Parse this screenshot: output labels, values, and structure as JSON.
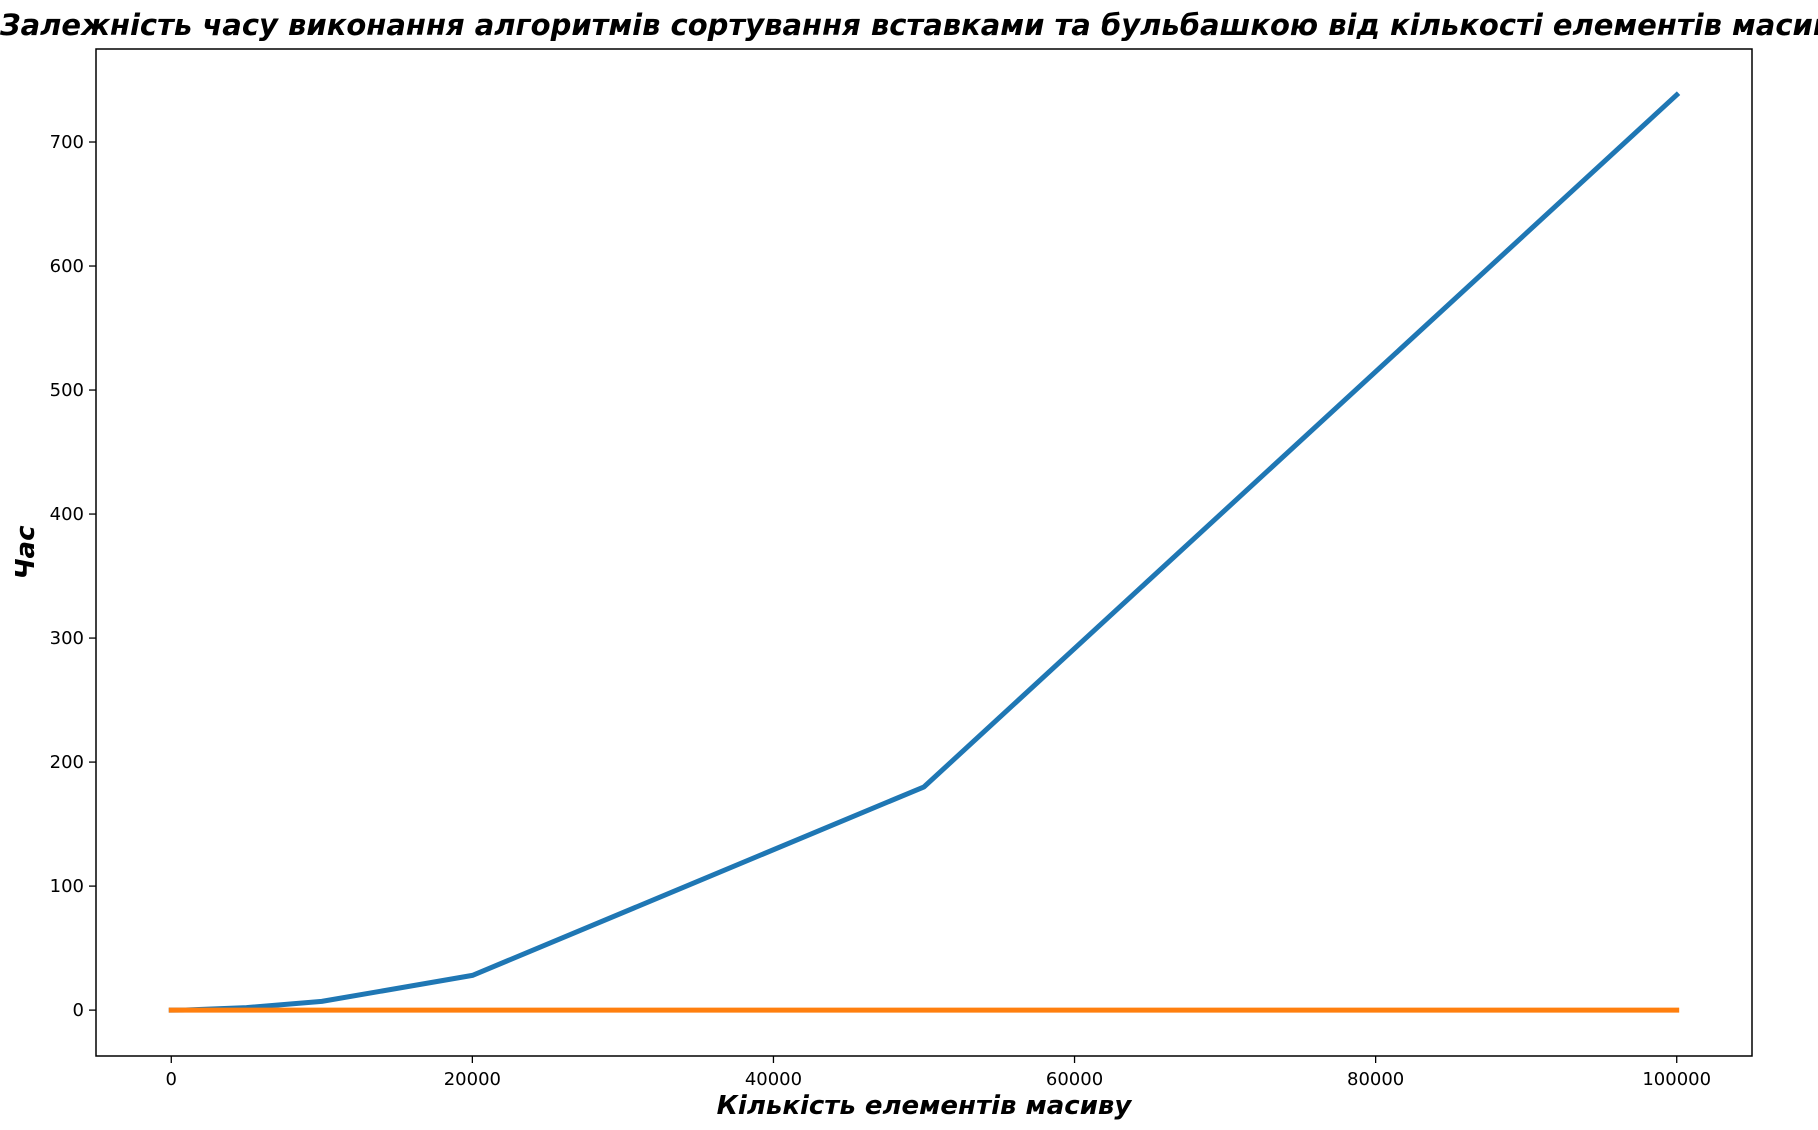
{
  "chart_data": {
    "type": "line",
    "title": "Залежність часу виконання алгоритмів сортування вставками та бульбашкою від кількості елементів масиву",
    "xlabel": "Кількість елементів масиву",
    "ylabel": "Час",
    "xlim": [
      -5000,
      105000
    ],
    "ylim": [
      -37,
      775
    ],
    "xticks": [
      0,
      20000,
      40000,
      60000,
      80000,
      100000
    ],
    "yticks": [
      0,
      100,
      200,
      300,
      400,
      500,
      600,
      700
    ],
    "grid": false,
    "legend": "none",
    "series": [
      {
        "color": "#1f77b4",
        "x": [
          0,
          1000,
          5000,
          10000,
          20000,
          50000,
          100000
        ],
        "y": [
          0,
          0.1,
          2,
          7,
          28,
          180,
          738
        ]
      },
      {
        "color": "#ff7f0e",
        "x": [
          0,
          1000,
          5000,
          10000,
          20000,
          50000,
          100000
        ],
        "y": [
          0,
          0,
          0,
          0,
          0,
          0,
          0
        ]
      }
    ]
  }
}
